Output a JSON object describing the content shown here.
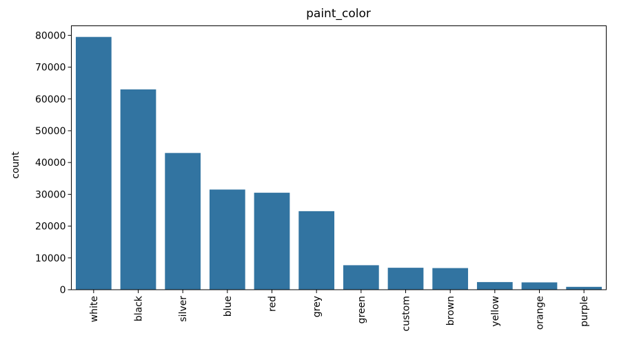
{
  "chart_data": {
    "type": "bar",
    "title": "paint_color",
    "xlabel": "",
    "ylabel": "count",
    "categories": [
      "white",
      "black",
      "silver",
      "blue",
      "red",
      "grey",
      "green",
      "custom",
      "brown",
      "yellow",
      "orange",
      "purple"
    ],
    "values": [
      79500,
      63000,
      43000,
      31500,
      30500,
      24700,
      7700,
      6900,
      6800,
      2400,
      2300,
      900
    ],
    "ylim": [
      0,
      83000
    ],
    "yticks": [
      0,
      10000,
      20000,
      30000,
      40000,
      50000,
      60000,
      70000,
      80000
    ],
    "grid": false,
    "legend": "none",
    "bar_color": "#3274a1"
  }
}
